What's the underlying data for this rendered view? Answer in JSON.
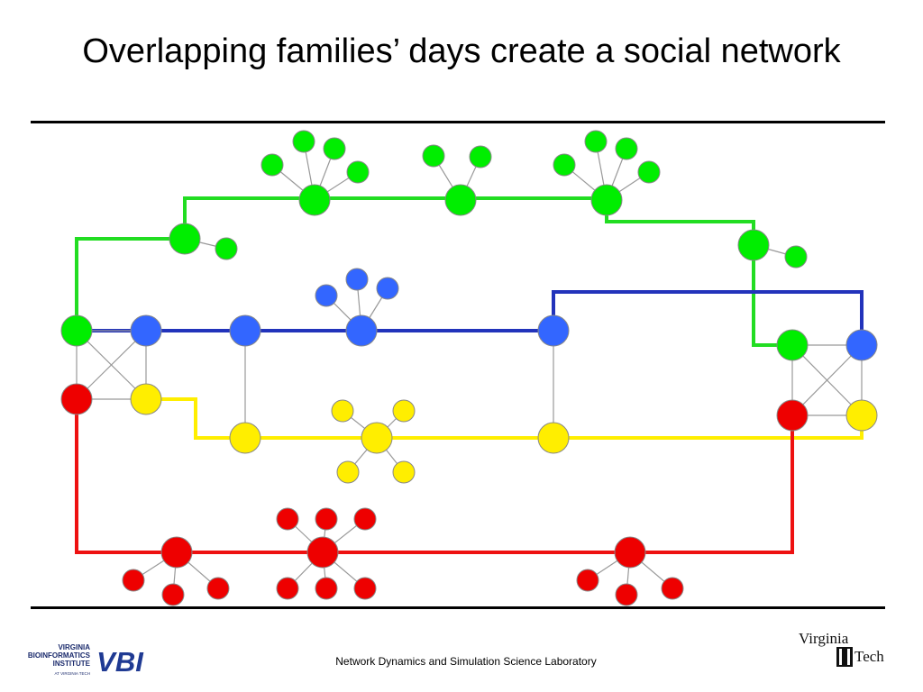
{
  "slide": {
    "title": "Overlapping families’ days create a social network",
    "footer": "Network Dynamics and Simulation Science Laboratory"
  },
  "logos": {
    "vbi": {
      "line1": "VIRGINIA",
      "line2": "BIOINFORMATICS",
      "line3": "INSTITUTE",
      "line4": "AT VIRGINIA TECH",
      "mark": "VBI"
    },
    "vt": {
      "line1": "Virginia",
      "line2": "Tech"
    }
  },
  "colors": {
    "green": "#00ee00",
    "blue": "#3366ff",
    "yellow": "#ffee00",
    "red": "#ee0000",
    "green_line": "#22dd22",
    "blue_line": "#2233bb",
    "yellow_line": "#ffee00",
    "red_line": "#ee1111",
    "edge": "#999999",
    "node_stroke": "#888888"
  },
  "diagram": {
    "type": "social-network",
    "families": [
      "green",
      "blue",
      "yellow",
      "red"
    ],
    "node_shape": "circle",
    "connections": "orthogonal colored paths linking family members; gray edges link nodes within a household"
  }
}
